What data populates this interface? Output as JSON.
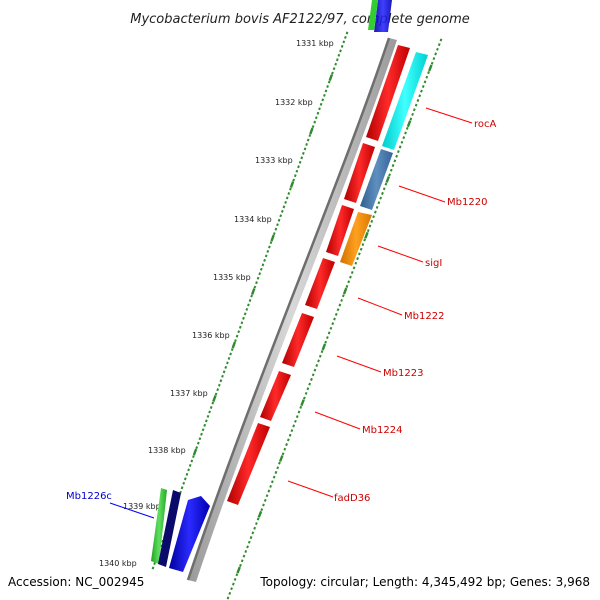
{
  "title": "Mycobacterium bovis AF2122/97, complete genome",
  "footer": {
    "accession": "Accession: NC_002945",
    "summary": "Topology: circular; Length: 4,345,492 bp; Genes: 3,968"
  },
  "ticks": [
    "1331 kbp",
    "1332 kbp",
    "1333 kbp",
    "1334 kbp",
    "1335 kbp",
    "1336 kbp",
    "1337 kbp",
    "1338 kbp",
    "1339 kbp",
    "1340 kbp"
  ],
  "gene_labels": [
    "rocA",
    "Mb1220",
    "sigI",
    "Mb1222",
    "Mb1223",
    "Mb1224",
    "fadD36",
    "Mb1226c"
  ],
  "colors": {
    "backbone": "#8c8c8c",
    "tick_green": "#2e8b2e",
    "forward_cds": "#ff0000",
    "reverse_cds": "#0000ff",
    "label_forward": "#cc0000",
    "label_reverse": "#0000cc",
    "rocA_feature": "#00ffff",
    "Mb1220_feature": "#4682b4",
    "sigI_feature": "#ff8c00",
    "Mb1226c_feature": "#32cd32"
  }
}
